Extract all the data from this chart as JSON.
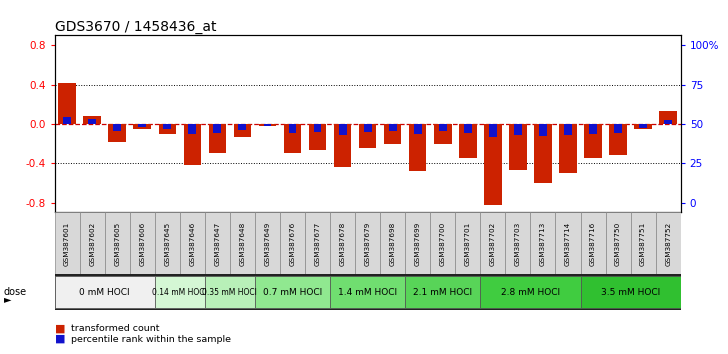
{
  "title": "GDS3670 / 1458436_at",
  "samples": [
    "GSM387601",
    "GSM387602",
    "GSM387605",
    "GSM387606",
    "GSM387645",
    "GSM387646",
    "GSM387647",
    "GSM387648",
    "GSM387649",
    "GSM387676",
    "GSM387677",
    "GSM387678",
    "GSM387679",
    "GSM387698",
    "GSM387699",
    "GSM387700",
    "GSM387701",
    "GSM387702",
    "GSM387703",
    "GSM387713",
    "GSM387714",
    "GSM387716",
    "GSM387750",
    "GSM387751",
    "GSM387752"
  ],
  "red_values": [
    0.42,
    0.08,
    -0.18,
    -0.05,
    -0.1,
    -0.42,
    -0.3,
    -0.13,
    -0.02,
    -0.3,
    -0.27,
    -0.44,
    -0.25,
    -0.2,
    -0.48,
    -0.2,
    -0.35,
    -0.82,
    -0.47,
    -0.6,
    -0.5,
    -0.35,
    -0.32,
    -0.05,
    0.13
  ],
  "blue_values": [
    0.07,
    0.05,
    -0.07,
    -0.03,
    -0.05,
    -0.1,
    -0.09,
    -0.06,
    -0.02,
    -0.09,
    -0.08,
    -0.11,
    -0.08,
    -0.07,
    -0.1,
    -0.07,
    -0.09,
    -0.13,
    -0.11,
    -0.12,
    -0.11,
    -0.1,
    -0.09,
    -0.04,
    0.04
  ],
  "dose_groups": [
    {
      "label": "0 mM HOCl",
      "start": 0,
      "end": 4,
      "color": "#f0f0f0"
    },
    {
      "label": "0.14 mM HOCl",
      "start": 4,
      "end": 6,
      "color": "#d4f7d4"
    },
    {
      "label": "0.35 mM HOCl",
      "start": 6,
      "end": 8,
      "color": "#b8f0b8"
    },
    {
      "label": "0.7 mM HOCl",
      "start": 8,
      "end": 11,
      "color": "#90e890"
    },
    {
      "label": "1.4 mM HOCl",
      "start": 11,
      "end": 14,
      "color": "#70de70"
    },
    {
      "label": "2.1 mM HOCl",
      "start": 14,
      "end": 17,
      "color": "#58d458"
    },
    {
      "label": "2.8 mM HOCl",
      "start": 17,
      "end": 21,
      "color": "#40cc40"
    },
    {
      "label": "3.5 mM HOCl",
      "start": 21,
      "end": 25,
      "color": "#30c030"
    }
  ],
  "ylim": [
    -0.9,
    0.9
  ],
  "yticks_left": [
    -0.8,
    -0.4,
    0.0,
    0.4,
    0.8
  ],
  "red_color": "#cc2200",
  "blue_color": "#1111cc",
  "zero_line_color": "#cc0000",
  "title_fontsize": 10
}
